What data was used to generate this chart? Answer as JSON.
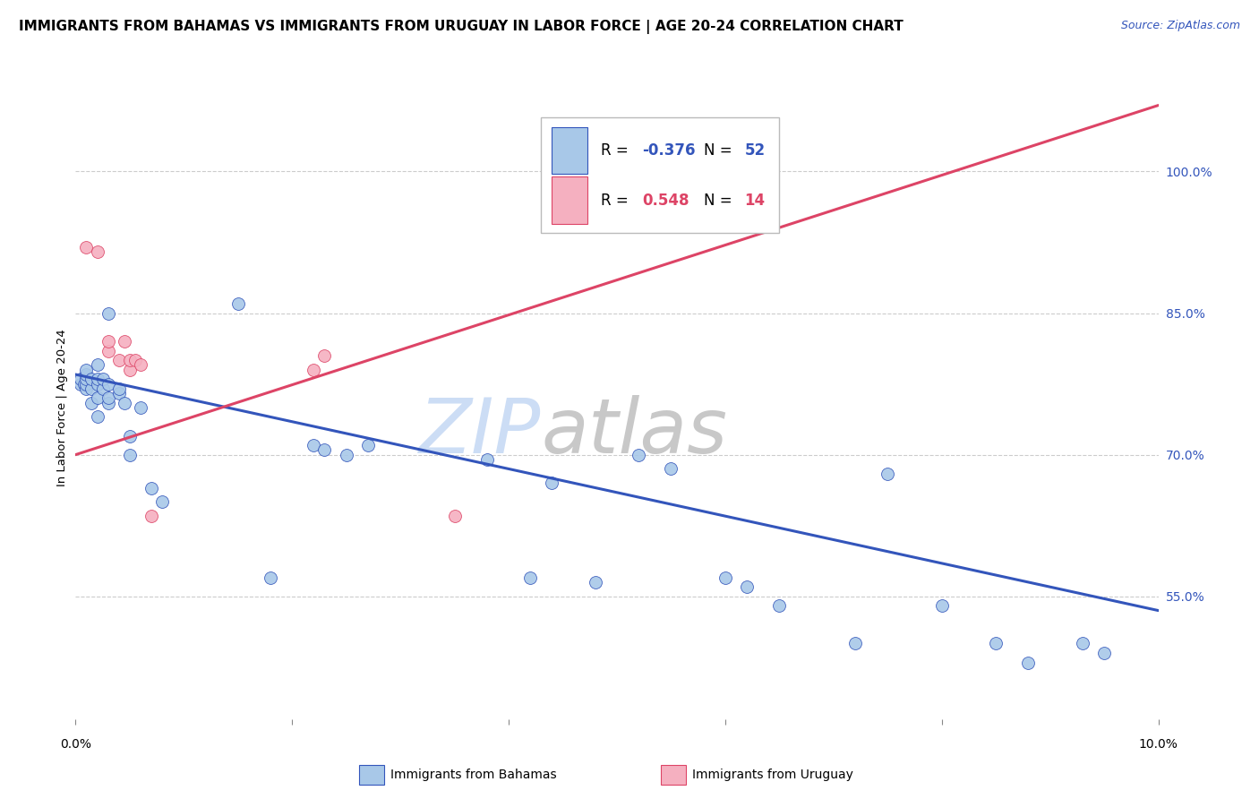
{
  "title": "IMMIGRANTS FROM BAHAMAS VS IMMIGRANTS FROM URUGUAY IN LABOR FORCE | AGE 20-24 CORRELATION CHART",
  "source": "Source: ZipAtlas.com",
  "ylabel": "In Labor Force | Age 20-24",
  "y_tick_labels": [
    "55.0%",
    "70.0%",
    "85.0%",
    "100.0%"
  ],
  "y_ticks": [
    0.55,
    0.7,
    0.85,
    1.0
  ],
  "x_range": [
    0.0,
    0.1
  ],
  "y_range": [
    0.42,
    1.08
  ],
  "legend_blue_r": "-0.376",
  "legend_blue_n": "52",
  "legend_pink_r": "0.548",
  "legend_pink_n": "14",
  "blue_scatter_x": [
    0.0005,
    0.0005,
    0.0008,
    0.001,
    0.001,
    0.001,
    0.001,
    0.001,
    0.0015,
    0.0015,
    0.0015,
    0.002,
    0.002,
    0.002,
    0.002,
    0.002,
    0.0025,
    0.0025,
    0.003,
    0.003,
    0.003,
    0.003,
    0.004,
    0.004,
    0.0045,
    0.005,
    0.005,
    0.006,
    0.007,
    0.008,
    0.015,
    0.018,
    0.022,
    0.023,
    0.025,
    0.027,
    0.038,
    0.042,
    0.044,
    0.048,
    0.052,
    0.055,
    0.06,
    0.062,
    0.065,
    0.072,
    0.075,
    0.08,
    0.085,
    0.088,
    0.093,
    0.095
  ],
  "blue_scatter_y": [
    0.775,
    0.78,
    0.775,
    0.77,
    0.775,
    0.78,
    0.785,
    0.79,
    0.755,
    0.77,
    0.78,
    0.74,
    0.76,
    0.775,
    0.78,
    0.795,
    0.77,
    0.78,
    0.755,
    0.76,
    0.775,
    0.85,
    0.765,
    0.77,
    0.755,
    0.7,
    0.72,
    0.75,
    0.665,
    0.65,
    0.86,
    0.57,
    0.71,
    0.705,
    0.7,
    0.71,
    0.695,
    0.57,
    0.67,
    0.565,
    0.7,
    0.685,
    0.57,
    0.56,
    0.54,
    0.5,
    0.68,
    0.54,
    0.5,
    0.48,
    0.5,
    0.49
  ],
  "pink_scatter_x": [
    0.001,
    0.002,
    0.003,
    0.003,
    0.004,
    0.0045,
    0.005,
    0.005,
    0.0055,
    0.006,
    0.007,
    0.022,
    0.023,
    0.035
  ],
  "pink_scatter_y": [
    0.92,
    0.915,
    0.81,
    0.82,
    0.8,
    0.82,
    0.79,
    0.8,
    0.8,
    0.795,
    0.635,
    0.79,
    0.805,
    0.635
  ],
  "blue_line_x": [
    0.0,
    0.1
  ],
  "blue_line_y": [
    0.785,
    0.535
  ],
  "pink_line_x": [
    0.0,
    0.1
  ],
  "pink_line_y": [
    0.7,
    1.07
  ],
  "blue_color": "#a8c8e8",
  "pink_color": "#f5b0c0",
  "blue_line_color": "#3355bb",
  "pink_line_color": "#dd4466",
  "watermark_zip_color": "#ccddf5",
  "watermark_atlas_color": "#c8c8c8",
  "grid_color": "#cccccc",
  "background_color": "#ffffff",
  "title_fontsize": 11,
  "axis_label_fontsize": 9.5,
  "tick_fontsize": 10,
  "legend_fontsize": 12
}
